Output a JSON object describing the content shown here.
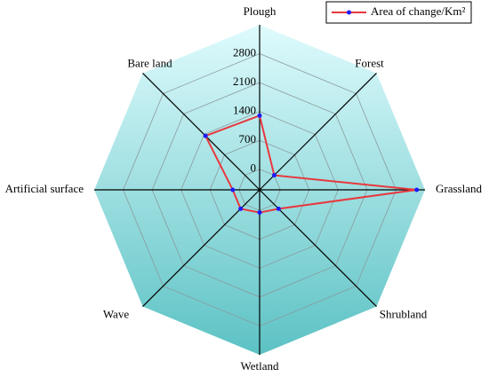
{
  "chart_data": {
    "type": "radar",
    "categories": [
      "Plough",
      "Forest",
      "Grassland",
      "Shrubland",
      "Wetland",
      "Wave",
      "Artificial surface",
      "Bare land"
    ],
    "series": [
      {
        "name": "Area of change/Km²",
        "color": "#e8383d",
        "marker_color": "#1a1aff",
        "values": [
          1300,
          0,
          3300,
          150,
          50,
          150,
          150,
          1350
        ]
      }
    ],
    "ylim": [
      -500,
      3500
    ],
    "yticks": [
      0,
      700,
      1400,
      2100,
      2800
    ],
    "grid": true,
    "legend": "upper right"
  }
}
